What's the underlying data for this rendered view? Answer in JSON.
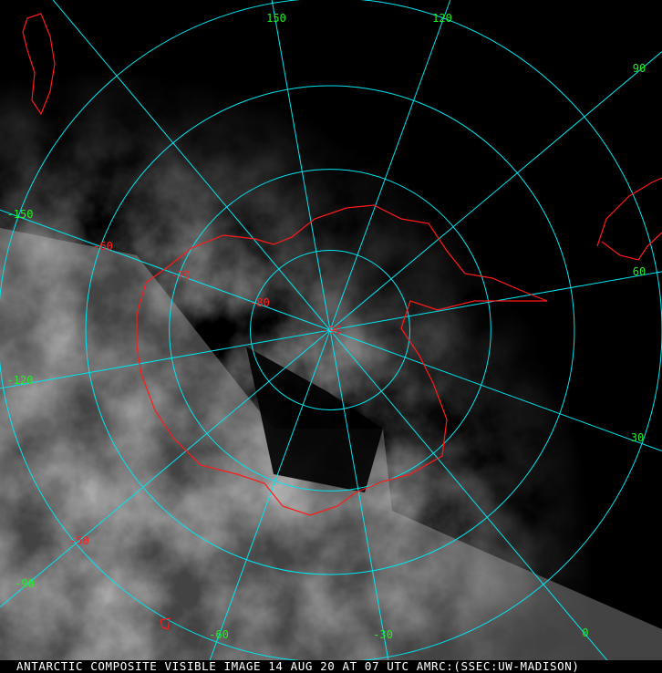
{
  "caption": "ANTARCTIC COMPOSITE VISIBLE IMAGE 14 AUG 20 AT 07 UTC AMRC:(SSEC:UW-MADISON)",
  "projection": "polar stereographic, south pole centered",
  "colors": {
    "graticule": "#00e5f0",
    "coastline": "#ff1a1a",
    "longitude_labels": "#22ee22",
    "latitude_labels": "#ff2020",
    "caption_text": "#ffffff"
  },
  "longitude_labels": [
    "150",
    "120",
    "90",
    "60",
    "30",
    "0",
    "-30",
    "-60",
    "-90",
    "-120",
    "-150"
  ],
  "latitude_labels": [
    "-90",
    "-80",
    "-70",
    "-60",
    "-50"
  ],
  "latitude_circles": [
    -80,
    -70,
    -60,
    -50
  ],
  "longitude_meridians": [
    0,
    30,
    60,
    90,
    120,
    150,
    180,
    -150,
    -120,
    -90,
    -60,
    -30
  ]
}
